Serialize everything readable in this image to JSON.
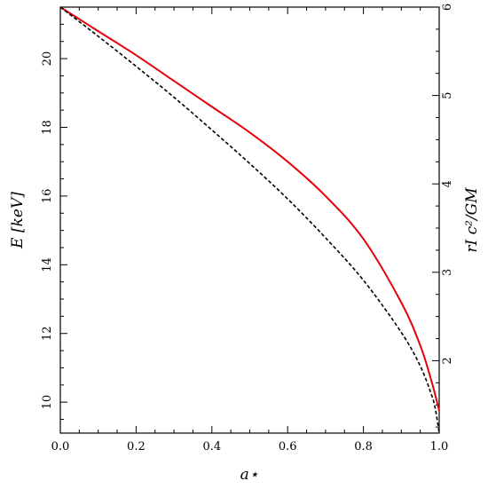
{
  "chart_data": {
    "type": "line",
    "xlabel": "a⋆",
    "ylabel_left": "E [keV]",
    "ylabel_right": "rI c²/GM",
    "xlim": [
      0,
      1
    ],
    "ylim_left": [
      9.1,
      21.5
    ],
    "ylim_right": [
      1.181,
      6
    ],
    "x_ticks": [
      "0.0",
      "0.2",
      "0.4",
      "0.6",
      "0.8",
      "1.0"
    ],
    "y_ticks_left": [
      "10",
      "12",
      "14",
      "16",
      "18",
      "20"
    ],
    "y_ticks_right": [
      "2",
      "3",
      "4",
      "5",
      "6"
    ],
    "grid": false,
    "series": [
      {
        "axis": "left",
        "color": "#e8000b",
        "style": "solid",
        "x": [
          0,
          0.1,
          0.2,
          0.3,
          0.4,
          0.5,
          0.6,
          0.7,
          0.8,
          0.9,
          0.95,
          0.98,
          1.0
        ],
        "y": [
          21.5,
          20.8,
          20.1,
          19.35,
          18.6,
          17.85,
          17.0,
          16.0,
          14.75,
          12.9,
          11.65,
          10.6,
          9.75
        ]
      },
      {
        "axis": "right",
        "color": "#000000",
        "style": "dashed",
        "x": [
          0,
          0.1,
          0.2,
          0.3,
          0.4,
          0.5,
          0.6,
          0.7,
          0.8,
          0.9,
          0.95,
          0.98,
          0.99,
          1.0
        ],
        "y": [
          6.0,
          5.67,
          5.33,
          4.98,
          4.61,
          4.23,
          3.83,
          3.39,
          2.91,
          2.32,
          1.94,
          1.61,
          1.45,
          1.0
        ]
      }
    ]
  }
}
